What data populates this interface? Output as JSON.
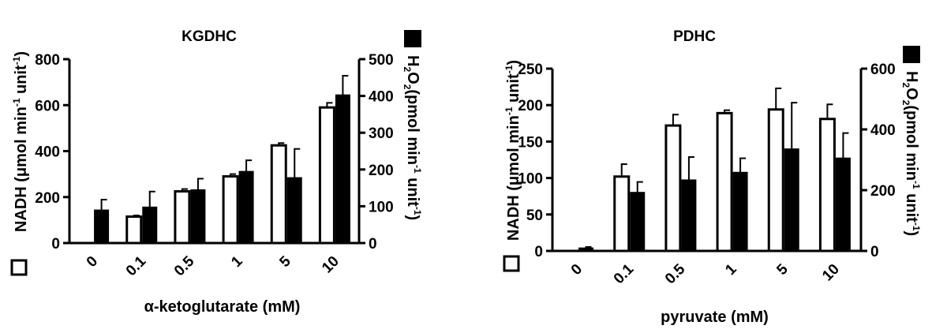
{
  "chart_data": [
    {
      "type": "bar",
      "title": "KGDHC",
      "xlabel": "α-ketoglutarate (mM)",
      "categories": [
        "0",
        "0.1",
        "0.5",
        "1",
        "5",
        "10"
      ],
      "y_left": {
        "label_text": "NADH (μmol min",
        "label_sup1": "-1",
        "label_mid": " unit",
        "label_sup2": "-1",
        "label_end": ")",
        "ylim": [
          0,
          800
        ],
        "ticks": [
          "0",
          "200",
          "400",
          "600",
          "800"
        ]
      },
      "y_right": {
        "label_pre": "H",
        "label_sub1": "2",
        "label_o": "O",
        "label_sub2": "2",
        "label_text": "(pmol min",
        "label_sup1": "-1",
        "label_mid": " unit",
        "label_sup2": "-1",
        "label_end": ")",
        "ylim": [
          0,
          500
        ],
        "ticks": [
          "0",
          "100",
          "200",
          "300",
          "400",
          "500"
        ]
      },
      "series": [
        {
          "axis": "left",
          "color": "#ffffff",
          "values": [
            0,
            115,
            225,
            290,
            425,
            590
          ],
          "errors": [
            0,
            5,
            10,
            10,
            10,
            20
          ]
        },
        {
          "axis": "right",
          "color": "#000000",
          "values": [
            90,
            98,
            145,
            195,
            178,
            403
          ],
          "errors": [
            28,
            42,
            30,
            30,
            78,
            52
          ]
        }
      ]
    },
    {
      "type": "bar",
      "title": "PDHC",
      "xlabel": "pyruvate (mM)",
      "categories": [
        "0",
        "0.1",
        "0.5",
        "1",
        "5",
        "10"
      ],
      "y_left": {
        "label_text": "NADH (μmol min",
        "label_sup1": "-1",
        "label_mid": " unit",
        "label_sup2": "-1",
        "label_end": ")",
        "ylim": [
          0,
          250
        ],
        "ticks": [
          "0",
          "50",
          "100",
          "150",
          "200",
          "250"
        ]
      },
      "y_right": {
        "label_pre": "H",
        "label_sub1": "2",
        "label_o": "O",
        "label_sub2": "2",
        "label_text": "(pmol min",
        "label_sup1": "-1",
        "label_mid": " unit",
        "label_sup2": "-1",
        "label_end": ")",
        "ylim": [
          0,
          600
        ],
        "ticks": [
          "0",
          "200",
          "400",
          "600"
        ]
      },
      "series": [
        {
          "axis": "left",
          "color": "#ffffff",
          "values": [
            0,
            102,
            172,
            189,
            194,
            181
          ],
          "errors": [
            0,
            17,
            15,
            4,
            29,
            20
          ]
        },
        {
          "axis": "right",
          "color": "#000000",
          "values": [
            10,
            193,
            234,
            259,
            336,
            306
          ],
          "errors": [
            3,
            34,
            75,
            46,
            152,
            82
          ]
        }
      ]
    }
  ]
}
